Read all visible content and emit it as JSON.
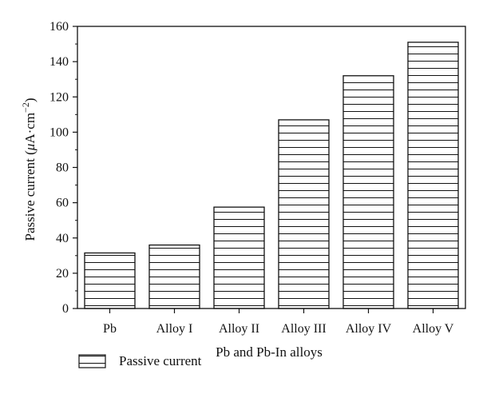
{
  "chart_data": {
    "type": "bar",
    "title": "",
    "categories": [
      "Pb",
      "Alloy I",
      "Alloy II",
      "Alloy III",
      "Alloy IV",
      "Alloy V"
    ],
    "series": [
      {
        "name": "Passive current",
        "values": [
          31.5,
          36,
          57.5,
          107,
          132,
          151
        ]
      }
    ],
    "xlabel": "Pb and Pb-In alloys",
    "ylabel_prefix": "Passive current (",
    "ylabel_unit_mu": "μ",
    "ylabel_unit_rest": "A·cm",
    "ylabel_exponent": "−2",
    "ylabel_suffix": ")",
    "ylim": [
      0,
      160
    ],
    "yticks": [
      0,
      20,
      40,
      60,
      80,
      100,
      120,
      140,
      160
    ],
    "bar_fill": "#ffffff",
    "bar_stroke": "#111111",
    "hatch": "horizontal lines",
    "grid": false,
    "legend_position": "bottom-left"
  },
  "legend": {
    "label": "Passive current"
  }
}
